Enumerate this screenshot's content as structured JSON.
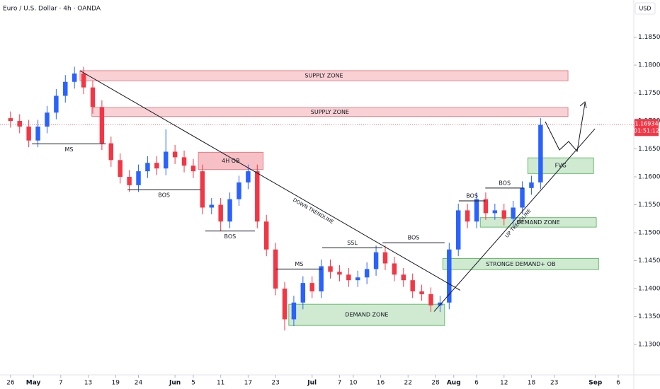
{
  "chart_data": {
    "type": "candlestick",
    "title": "Euro / U.S. Dollar · 4h · OANDA",
    "currency": "USD",
    "up_color": "#2962ff",
    "down_color": "#f23645",
    "xlim": [
      -2.3,
      136.4
    ],
    "ylim": [
      1.12456,
      1.19165
    ],
    "xticks": [
      {
        "value": 0,
        "label": "26"
      },
      {
        "value": 5,
        "label": "May"
      },
      {
        "value": 11,
        "label": "7"
      },
      {
        "value": 17,
        "label": "13"
      },
      {
        "value": 23,
        "label": "19"
      },
      {
        "value": 28,
        "label": "24"
      },
      {
        "value": 36,
        "label": "Jun"
      },
      {
        "value": 40,
        "label": "5"
      },
      {
        "value": 46,
        "label": "11"
      },
      {
        "value": 52,
        "label": "17"
      },
      {
        "value": 58,
        "label": "23"
      },
      {
        "value": 66,
        "label": "Jul"
      },
      {
        "value": 72,
        "label": "7"
      },
      {
        "value": 75,
        "label": "10"
      },
      {
        "value": 81,
        "label": "16"
      },
      {
        "value": 87,
        "label": "22"
      },
      {
        "value": 93,
        "label": "28"
      },
      {
        "value": 97,
        "label": "Aug"
      },
      {
        "value": 102,
        "label": "6"
      },
      {
        "value": 108,
        "label": "12"
      },
      {
        "value": 114,
        "label": "18"
      },
      {
        "value": 119,
        "label": "23"
      },
      {
        "value": 128,
        "label": "Sep"
      },
      {
        "value": 133,
        "label": "6"
      }
    ],
    "yticks": [
      {
        "value": 1.13,
        "label": "1.13000"
      },
      {
        "value": 1.135,
        "label": "1.13500"
      },
      {
        "value": 1.14,
        "label": "1.14000"
      },
      {
        "value": 1.145,
        "label": "1.14500"
      },
      {
        "value": 1.15,
        "label": "1.15000"
      },
      {
        "value": 1.155,
        "label": "1.15500"
      },
      {
        "value": 1.16,
        "label": "1.16000"
      },
      {
        "value": 1.165,
        "label": "1.16500"
      },
      {
        "value": 1.17,
        "label": "1.17000"
      },
      {
        "value": 1.175,
        "label": "1.17500"
      },
      {
        "value": 1.18,
        "label": "1.18000"
      },
      {
        "value": 1.185,
        "label": "1.18500"
      }
    ],
    "x": [
      0,
      2,
      4,
      6,
      8,
      10,
      12,
      14,
      16,
      18,
      20,
      22,
      24,
      26,
      28,
      30,
      32,
      34,
      36,
      38,
      40,
      42,
      44,
      46,
      48,
      50,
      52,
      54,
      56,
      58,
      60,
      62,
      64,
      66,
      68,
      70,
      72,
      74,
      76,
      78,
      80,
      82,
      84,
      86,
      88,
      90,
      92,
      94,
      96,
      98,
      100,
      102,
      104,
      106,
      108,
      110,
      112,
      114,
      116
    ],
    "open": [
      1.1705,
      1.17,
      1.169,
      1.1665,
      1.169,
      1.1715,
      1.1745,
      1.177,
      1.1785,
      1.176,
      1.1725,
      1.166,
      1.163,
      1.16,
      1.1585,
      1.161,
      1.1625,
      1.1615,
      1.1645,
      1.1635,
      1.162,
      1.161,
      1.1545,
      1.155,
      1.152,
      1.156,
      1.159,
      1.161,
      1.152,
      1.147,
      1.14,
      1.1345,
      1.1375,
      1.141,
      1.1395,
      1.144,
      1.143,
      1.1425,
      1.1415,
      1.142,
      1.1435,
      1.1465,
      1.1445,
      1.1425,
      1.1415,
      1.1395,
      1.139,
      1.137,
      1.1375,
      1.147,
      1.154,
      1.152,
      1.156,
      1.1535,
      1.154,
      1.1525,
      1.1545,
      1.158,
      1.159
    ],
    "high": [
      1.1717,
      1.1712,
      1.1702,
      1.1702,
      1.1727,
      1.1757,
      1.1782,
      1.1797,
      1.1797,
      1.1772,
      1.1737,
      1.1672,
      1.1642,
      1.1612,
      1.1622,
      1.1637,
      1.1637,
      1.1685,
      1.1657,
      1.1647,
      1.1632,
      1.1622,
      1.1562,
      1.1562,
      1.1572,
      1.1602,
      1.1622,
      1.1622,
      1.1532,
      1.1482,
      1.1412,
      1.1387,
      1.1422,
      1.1422,
      1.1452,
      1.1452,
      1.1442,
      1.1437,
      1.1432,
      1.1447,
      1.1477,
      1.1477,
      1.1457,
      1.1437,
      1.1427,
      1.1407,
      1.1402,
      1.1387,
      1.1482,
      1.1552,
      1.1552,
      1.1572,
      1.1572,
      1.1552,
      1.1552,
      1.1557,
      1.1592,
      1.1602,
      1.1705
    ],
    "low": [
      1.1688,
      1.1678,
      1.1653,
      1.1653,
      1.1678,
      1.1703,
      1.1733,
      1.1758,
      1.1748,
      1.1713,
      1.1648,
      1.1618,
      1.1588,
      1.1573,
      1.1573,
      1.1598,
      1.1603,
      1.1603,
      1.1623,
      1.1608,
      1.1598,
      1.1533,
      1.1533,
      1.1503,
      1.1508,
      1.1548,
      1.1578,
      1.1508,
      1.1458,
      1.1388,
      1.1325,
      1.1333,
      1.1363,
      1.1383,
      1.1383,
      1.1418,
      1.1413,
      1.1403,
      1.1403,
      1.1408,
      1.1423,
      1.1433,
      1.1413,
      1.1403,
      1.1383,
      1.1378,
      1.1358,
      1.1358,
      1.1363,
      1.1458,
      1.1508,
      1.1508,
      1.1523,
      1.1523,
      1.1513,
      1.1513,
      1.1533,
      1.1568,
      1.1578
    ],
    "close": [
      1.17,
      1.169,
      1.1665,
      1.169,
      1.1715,
      1.1745,
      1.177,
      1.1785,
      1.176,
      1.1725,
      1.166,
      1.163,
      1.16,
      1.1585,
      1.161,
      1.1625,
      1.1615,
      1.1645,
      1.1635,
      1.162,
      1.161,
      1.1545,
      1.155,
      1.152,
      1.156,
      1.159,
      1.161,
      1.152,
      1.147,
      1.14,
      1.1345,
      1.1375,
      1.141,
      1.1395,
      1.144,
      1.143,
      1.1425,
      1.1415,
      1.142,
      1.1435,
      1.1465,
      1.1445,
      1.1425,
      1.1415,
      1.1395,
      1.139,
      1.137,
      1.1375,
      1.147,
      1.154,
      1.152,
      1.156,
      1.1535,
      1.154,
      1.1525,
      1.1545,
      1.158,
      1.159,
      1.1693
    ],
    "zones": [
      {
        "label": "SUPPLY ZONE",
        "x": [
          15.2,
          122.0
        ],
        "y": [
          1.1772,
          1.179
        ],
        "color": "#f8c9cd",
        "border": "#e06b76"
      },
      {
        "label": "SUPPLY ZONE",
        "x": [
          17.8,
          122.0
        ],
        "y": [
          1.1708,
          1.1724
        ],
        "color": "#f8c9cd",
        "border": "#e06b76"
      },
      {
        "label": "4H OB",
        "x": [
          41.1,
          55.3
        ],
        "y": [
          1.1613,
          1.1644
        ],
        "color": "#f6b5bb",
        "border": "#e06b76"
      },
      {
        "label": "DEMAND ZONE",
        "x": [
          60.9,
          95.0
        ],
        "y": [
          1.1334,
          1.1372
        ],
        "color": "#c8e6c9",
        "border": "#4caf50"
      },
      {
        "label": "STRONGE DEMAND+ OB",
        "x": [
          94.6,
          128.7
        ],
        "y": [
          1.1434,
          1.1454
        ],
        "color": "#c8e6c9",
        "border": "#4caf50"
      },
      {
        "label": "DEMAND ZONE",
        "x": [
          102.8,
          128.2
        ],
        "y": [
          1.151,
          1.1527
        ],
        "color": "#c8e6c9",
        "border": "#4caf50"
      },
      {
        "label": "FVG",
        "x": [
          113.2,
          127.6
        ],
        "y": [
          1.1606,
          1.1634
        ],
        "color": "#c8e6c9",
        "border": "#4caf50"
      }
    ],
    "levels": [
      {
        "label": "MS",
        "x": [
          4.7,
          20.9
        ],
        "y": 1.1659,
        "label_position": "below"
      },
      {
        "label": "BOS",
        "x": [
          25.6,
          41.6
        ],
        "y": 1.1577,
        "label_position": "below"
      },
      {
        "label": "BOS",
        "x": [
          42.6,
          53.5
        ],
        "y": 1.1503,
        "label_position": "below"
      },
      {
        "label": "MS",
        "x": [
          58.1,
          68.2
        ],
        "y": 1.1435,
        "label_position": "above"
      },
      {
        "label": "SSL",
        "x": [
          68.2,
          81.4
        ],
        "y": 1.1473,
        "label_position": "above"
      },
      {
        "label": "BOS",
        "x": [
          81.4,
          95.0
        ],
        "y": 1.1482,
        "label_position": "above"
      },
      {
        "label": "BOS",
        "x": [
          98.1,
          103.9
        ],
        "y": 1.1557,
        "label_position": "above"
      },
      {
        "label": "BOS",
        "x": [
          103.9,
          112.4
        ],
        "y": 1.158,
        "label_position": "above"
      }
    ],
    "trendlines": [
      {
        "label": "DOWN TRENDLINE",
        "x": [
          15.2,
          98.4
        ],
        "y": [
          1.179,
          1.1397
        ]
      },
      {
        "label": "UP TRENDLINE",
        "x": [
          92.7,
          127.9
        ],
        "y": [
          1.1359,
          1.1686
        ]
      }
    ],
    "price_label": {
      "value": 1.16934,
      "label": "1.16934",
      "countdown": "01:51:12"
    }
  }
}
